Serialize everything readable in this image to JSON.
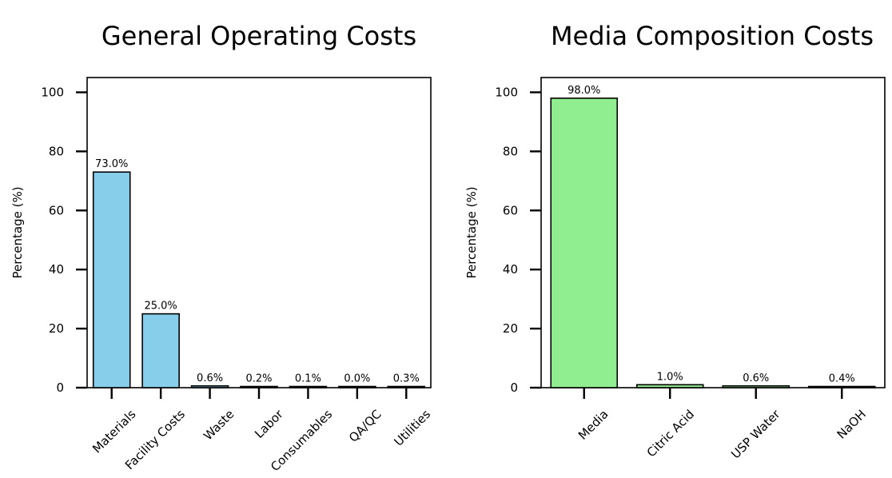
{
  "chart_data": [
    {
      "type": "bar",
      "title": "General Operating Costs",
      "xlabel": "",
      "ylabel": "Percentage (%)",
      "categories": [
        "Materials",
        "Facility Costs",
        "Waste",
        "Labor",
        "Consumables",
        "QA/QC",
        "Utilities"
      ],
      "values": [
        73.0,
        25.0,
        0.6,
        0.2,
        0.1,
        0.0,
        0.3
      ],
      "data_labels": [
        "73.0%",
        "25.0%",
        "0.6%",
        "0.2%",
        "0.1%",
        "0.0%",
        "0.3%"
      ],
      "ylim": [
        0,
        105
      ],
      "yticks": [
        0,
        20,
        40,
        60,
        80,
        100
      ],
      "grid": false,
      "color": "#87ceeb"
    },
    {
      "type": "bar",
      "title": "Media Composition Costs",
      "xlabel": "",
      "ylabel": "Percentage (%)",
      "categories": [
        "Media",
        "Citric Acid",
        "USP Water",
        "NaOH"
      ],
      "values": [
        98.0,
        1.0,
        0.6,
        0.4
      ],
      "data_labels": [
        "98.0%",
        "1.0%",
        "0.6%",
        "0.4%"
      ],
      "ylim": [
        0,
        105
      ],
      "yticks": [
        0,
        20,
        40,
        60,
        80,
        100
      ],
      "grid": false,
      "color": "#90ee90"
    }
  ]
}
